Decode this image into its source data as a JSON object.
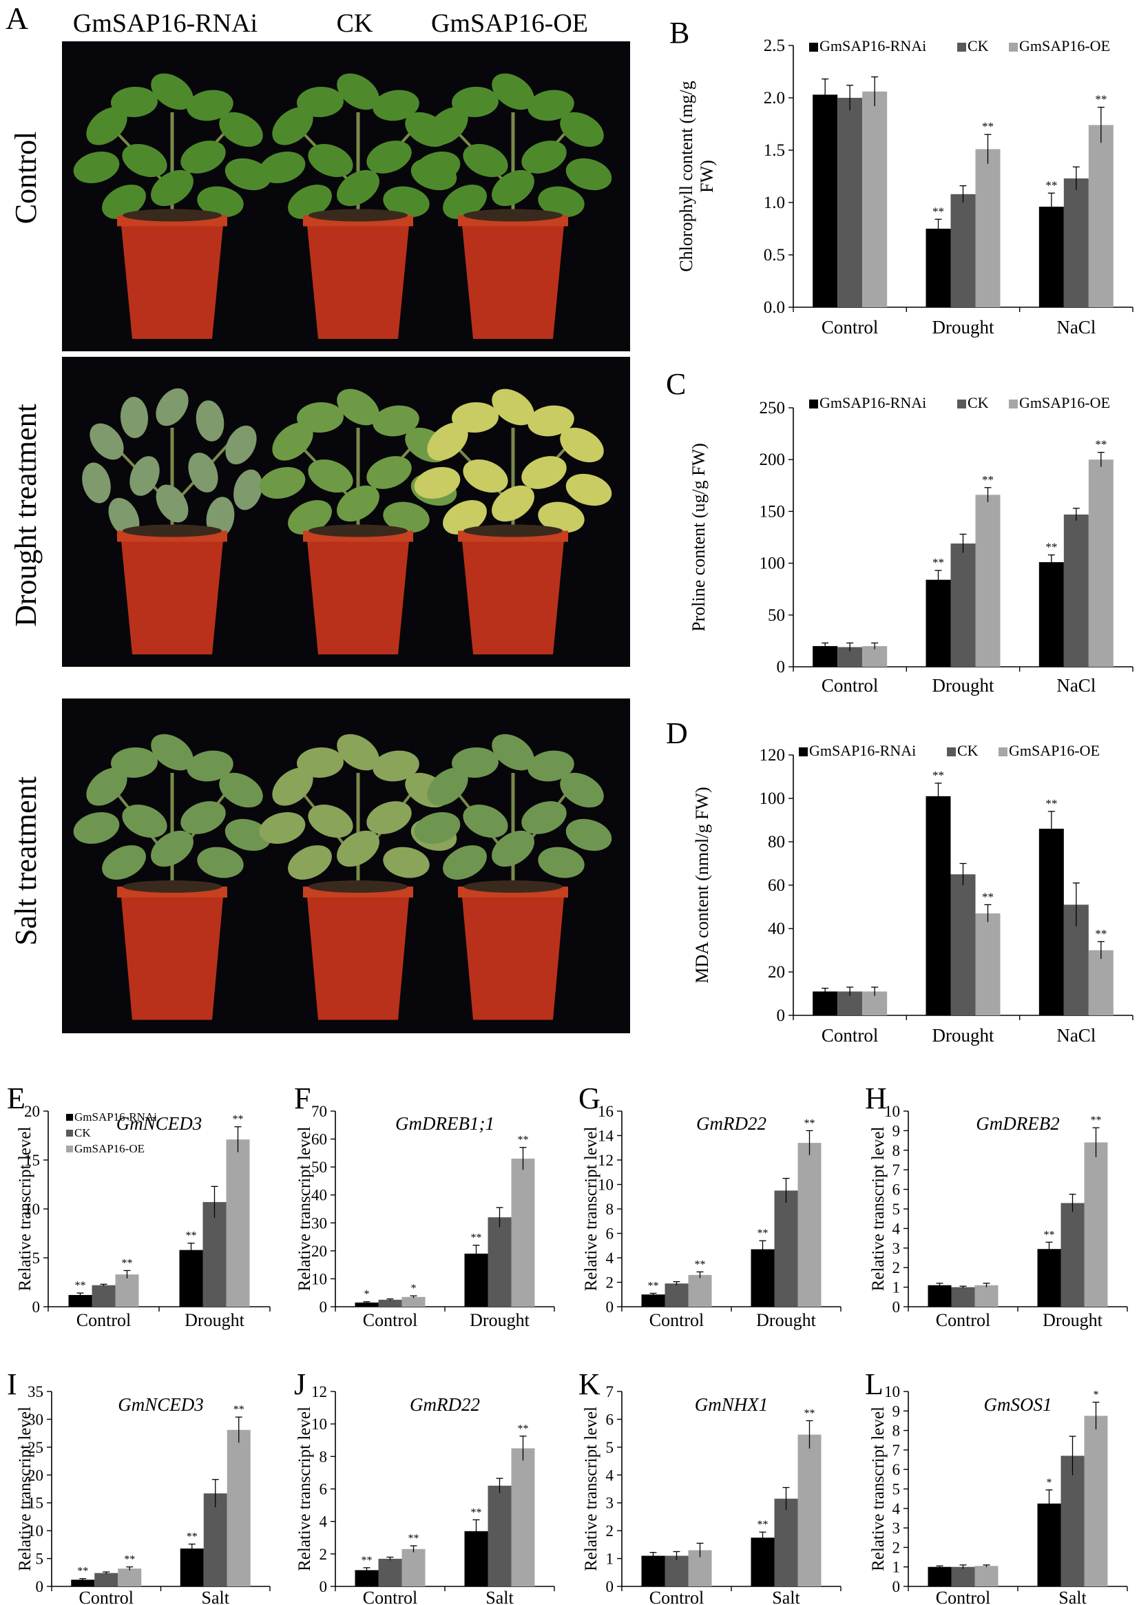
{
  "colors": {
    "rnai": "#000000",
    "ck": "#595959",
    "oe": "#a6a6a6",
    "photo_bg": "#07060a",
    "pot": "#b9311a",
    "leaf_healthy": "#4e8a2c",
    "leaf_wilted": "#7f9a6d",
    "leaf_yellow": "#c8cc62"
  },
  "panel_a": {
    "letter": "A",
    "column_headers": [
      "GmSAP16-RNAi",
      "CK",
      "GmSAP16-OE"
    ],
    "row_labels": [
      "Control",
      "Drought treatment",
      "Salt treatment"
    ]
  },
  "legend": {
    "items": [
      "GmSAP16-RNAi",
      "CK",
      "GmSAP16-OE"
    ]
  },
  "chart_data": [
    {
      "id": "B",
      "type": "bar",
      "letter": "B",
      "title": "",
      "ylabel": "Chlorophyll content (mg/g FW)",
      "ylabel_lines": [
        "Chlorophyll content (mg/g",
        "FW)"
      ],
      "categories": [
        "Control",
        "Drought",
        "NaCl"
      ],
      "ylim": [
        0,
        2.5
      ],
      "yticks": [
        "0.0",
        "0.5",
        "1.0",
        "1.5",
        "2.0",
        "2.5"
      ],
      "legend_position": "top",
      "series": [
        {
          "name": "GmSAP16-RNAi",
          "values": [
            2.03,
            0.75,
            0.96
          ],
          "errors": [
            0.15,
            0.09,
            0.13
          ],
          "marks": [
            "",
            "**",
            "**"
          ]
        },
        {
          "name": "CK",
          "values": [
            2.0,
            1.08,
            1.23
          ],
          "errors": [
            0.12,
            0.08,
            0.11
          ],
          "marks": [
            "",
            "",
            ""
          ]
        },
        {
          "name": "GmSAP16-OE",
          "values": [
            2.06,
            1.51,
            1.74
          ],
          "errors": [
            0.14,
            0.14,
            0.17
          ],
          "marks": [
            "",
            "**",
            "**"
          ]
        }
      ]
    },
    {
      "id": "C",
      "type": "bar",
      "letter": "C",
      "title": "",
      "ylabel": "Proline content (ug/g FW)",
      "categories": [
        "Control",
        "Drought",
        "NaCl"
      ],
      "ylim": [
        0,
        250
      ],
      "yticks": [
        "0",
        "50",
        "100",
        "150",
        "200",
        "250"
      ],
      "legend_position": "top",
      "series": [
        {
          "name": "GmSAP16-RNAi",
          "values": [
            20,
            84,
            101
          ],
          "errors": [
            3,
            9,
            7
          ],
          "marks": [
            "",
            "**",
            "**"
          ]
        },
        {
          "name": "CK",
          "values": [
            19,
            119,
            147
          ],
          "errors": [
            4,
            9,
            6
          ],
          "marks": [
            "",
            "",
            ""
          ]
        },
        {
          "name": "GmSAP16-OE",
          "values": [
            20,
            166,
            200
          ],
          "errors": [
            3,
            7,
            7
          ],
          "marks": [
            "",
            "**",
            "**"
          ]
        }
      ]
    },
    {
      "id": "D",
      "type": "bar",
      "letter": "D",
      "title": "",
      "ylabel": "MDA content (nmol/g FW)",
      "categories": [
        "Control",
        "Drought",
        "NaCl"
      ],
      "ylim": [
        0,
        120
      ],
      "yticks": [
        "0",
        "20",
        "40",
        "60",
        "80",
        "100",
        "120"
      ],
      "legend_position": "top",
      "series": [
        {
          "name": "GmSAP16-RNAi",
          "values": [
            11,
            101,
            86
          ],
          "errors": [
            1.5,
            6,
            8
          ],
          "marks": [
            "",
            "**",
            "**"
          ]
        },
        {
          "name": "CK",
          "values": [
            11,
            65,
            51
          ],
          "errors": [
            2,
            5,
            10
          ],
          "marks": [
            "",
            "",
            ""
          ]
        },
        {
          "name": "GmSAP16-OE",
          "values": [
            11,
            47,
            30
          ],
          "errors": [
            2,
            4,
            4
          ],
          "marks": [
            "",
            "**",
            "**"
          ]
        }
      ]
    },
    {
      "id": "E",
      "type": "bar",
      "letter": "E",
      "title": "GmNCED3",
      "ylabel": "Relative transcript level",
      "categories": [
        "Control",
        "Drought"
      ],
      "ylim": [
        0,
        20
      ],
      "yticks": [
        "0",
        "5",
        "10",
        "15",
        "20"
      ],
      "legend_position": "top-left",
      "series": [
        {
          "name": "GmSAP16-RNAi",
          "values": [
            1.2,
            5.8
          ],
          "errors": [
            0.2,
            0.7
          ],
          "marks": [
            "**",
            "**"
          ]
        },
        {
          "name": "CK",
          "values": [
            2.2,
            10.7
          ],
          "errors": [
            0.1,
            1.6
          ],
          "marks": [
            "",
            ""
          ]
        },
        {
          "name": "GmSAP16-OE",
          "values": [
            3.3,
            17.1
          ],
          "errors": [
            0.4,
            1.3
          ],
          "marks": [
            "**",
            "**"
          ]
        }
      ]
    },
    {
      "id": "F",
      "type": "bar",
      "letter": "F",
      "title": "GmDREB1;1",
      "ylabel": "Relative transcript level",
      "categories": [
        "Control",
        "Drought"
      ],
      "ylim": [
        0,
        70
      ],
      "yticks": [
        "0",
        "10",
        "20",
        "30",
        "40",
        "50",
        "60",
        "70"
      ],
      "series": [
        {
          "name": "GmSAP16-RNAi",
          "values": [
            1.5,
            19
          ],
          "errors": [
            0.3,
            3
          ],
          "marks": [
            "*",
            "**"
          ]
        },
        {
          "name": "CK",
          "values": [
            2.5,
            32
          ],
          "errors": [
            0.3,
            3.5
          ],
          "marks": [
            "",
            ""
          ]
        },
        {
          "name": "GmSAP16-OE",
          "values": [
            3.5,
            53
          ],
          "errors": [
            0.4,
            4
          ],
          "marks": [
            "*",
            "**"
          ]
        }
      ]
    },
    {
      "id": "G",
      "type": "bar",
      "letter": "G",
      "title": "GmRD22",
      "ylabel": "Relative transcript level",
      "categories": [
        "Control",
        "Drought"
      ],
      "ylim": [
        0,
        16
      ],
      "yticks": [
        "0",
        "2",
        "4",
        "6",
        "8",
        "10",
        "12",
        "14",
        "16"
      ],
      "series": [
        {
          "name": "GmSAP16-RNAi",
          "values": [
            1.0,
            4.7
          ],
          "errors": [
            0.1,
            0.7
          ],
          "marks": [
            "**",
            "**"
          ]
        },
        {
          "name": "CK",
          "values": [
            1.9,
            9.5
          ],
          "errors": [
            0.15,
            1.0
          ],
          "marks": [
            "",
            ""
          ]
        },
        {
          "name": "GmSAP16-OE",
          "values": [
            2.6,
            13.4
          ],
          "errors": [
            0.25,
            1.0
          ],
          "marks": [
            "**",
            "**"
          ]
        }
      ]
    },
    {
      "id": "H",
      "type": "bar",
      "letter": "H",
      "title": "GmDREB2",
      "ylabel": "Relative transcript level",
      "categories": [
        "Control",
        "Drought"
      ],
      "ylim": [
        0,
        10
      ],
      "yticks": [
        "0",
        "1",
        "2",
        "3",
        "4",
        "5",
        "6",
        "7",
        "8",
        "9",
        "10"
      ],
      "series": [
        {
          "name": "GmSAP16-RNAi",
          "values": [
            1.1,
            2.95
          ],
          "errors": [
            0.1,
            0.35
          ],
          "marks": [
            "",
            "**"
          ]
        },
        {
          "name": "CK",
          "values": [
            1.0,
            5.3
          ],
          "errors": [
            0.05,
            0.45
          ],
          "marks": [
            "",
            ""
          ]
        },
        {
          "name": "GmSAP16-OE",
          "values": [
            1.1,
            8.4
          ],
          "errors": [
            0.1,
            0.75
          ],
          "marks": [
            "",
            "**"
          ]
        }
      ]
    },
    {
      "id": "I",
      "type": "bar",
      "letter": "I",
      "title": "GmNCED3",
      "ylabel": "Relative transcript level",
      "categories": [
        "Control",
        "Salt"
      ],
      "ylim": [
        0,
        35
      ],
      "yticks": [
        "0",
        "5",
        "10",
        "15",
        "20",
        "25",
        "30",
        "35"
      ],
      "series": [
        {
          "name": "GmSAP16-RNAi",
          "values": [
            1.2,
            6.8
          ],
          "errors": [
            0.2,
            0.8
          ],
          "marks": [
            "**",
            "**"
          ]
        },
        {
          "name": "CK",
          "values": [
            2.4,
            16.7
          ],
          "errors": [
            0.2,
            2.5
          ],
          "marks": [
            "",
            ""
          ]
        },
        {
          "name": "GmSAP16-OE",
          "values": [
            3.2,
            28.1
          ],
          "errors": [
            0.3,
            2.3
          ],
          "marks": [
            "**",
            "**"
          ]
        }
      ]
    },
    {
      "id": "J",
      "type": "bar",
      "letter": "J",
      "title": "GmRD22",
      "ylabel": "Relative transcript level",
      "categories": [
        "Control",
        "Salt"
      ],
      "ylim": [
        0,
        12
      ],
      "yticks": [
        "0",
        "2",
        "4",
        "6",
        "8",
        "10",
        "12"
      ],
      "series": [
        {
          "name": "GmSAP16-RNAi",
          "values": [
            1.0,
            3.4
          ],
          "errors": [
            0.15,
            0.7
          ],
          "marks": [
            "**",
            "**"
          ]
        },
        {
          "name": "CK",
          "values": [
            1.7,
            6.2
          ],
          "errors": [
            0.1,
            0.45
          ],
          "marks": [
            "",
            ""
          ]
        },
        {
          "name": "GmSAP16-OE",
          "values": [
            2.3,
            8.5
          ],
          "errors": [
            0.2,
            0.75
          ],
          "marks": [
            "**",
            "**"
          ]
        }
      ]
    },
    {
      "id": "K",
      "type": "bar",
      "letter": "K",
      "title": "GmNHX1",
      "ylabel": "Relative transcript level",
      "categories": [
        "Control",
        "Salt"
      ],
      "ylim": [
        0,
        7
      ],
      "yticks": [
        "0",
        "1",
        "2",
        "3",
        "4",
        "5",
        "6",
        "7"
      ],
      "series": [
        {
          "name": "GmSAP16-RNAi",
          "values": [
            1.1,
            1.75
          ],
          "errors": [
            0.12,
            0.2
          ],
          "marks": [
            "",
            "**"
          ]
        },
        {
          "name": "CK",
          "values": [
            1.1,
            3.15
          ],
          "errors": [
            0.15,
            0.4
          ],
          "marks": [
            "",
            ""
          ]
        },
        {
          "name": "GmSAP16-OE",
          "values": [
            1.3,
            5.45
          ],
          "errors": [
            0.25,
            0.5
          ],
          "marks": [
            "",
            "**"
          ]
        }
      ]
    },
    {
      "id": "L",
      "type": "bar",
      "letter": "L",
      "title": "GmSOS1",
      "ylabel": "Relative transcript level",
      "categories": [
        "Control",
        "Salt"
      ],
      "ylim": [
        0,
        10
      ],
      "yticks": [
        "0",
        "1",
        "2",
        "3",
        "4",
        "5",
        "6",
        "7",
        "8",
        "9",
        "10"
      ],
      "series": [
        {
          "name": "GmSAP16-RNAi",
          "values": [
            1.0,
            4.25
          ],
          "errors": [
            0.05,
            0.7
          ],
          "marks": [
            "",
            "*"
          ]
        },
        {
          "name": "CK",
          "values": [
            1.0,
            6.7
          ],
          "errors": [
            0.1,
            1.0
          ],
          "marks": [
            "",
            ""
          ]
        },
        {
          "name": "GmSAP16-OE",
          "values": [
            1.05,
            8.75
          ],
          "errors": [
            0.05,
            0.7
          ],
          "marks": [
            "",
            "*"
          ]
        }
      ]
    }
  ]
}
